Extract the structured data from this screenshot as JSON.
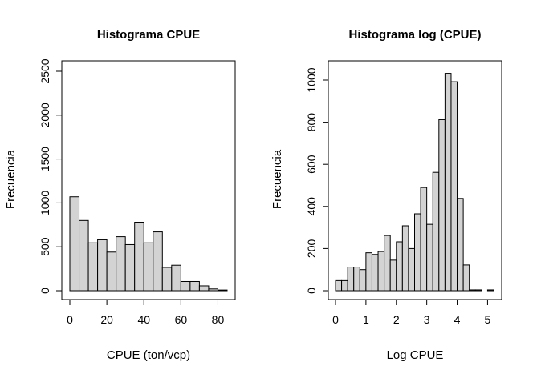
{
  "chart_data": [
    {
      "type": "bar",
      "title": "Histograma CPUE",
      "xlabel": "CPUE (ton/vcp)",
      "ylabel": "Frecuencia",
      "bin_width": 5,
      "xlim": [
        0,
        85
      ],
      "ylim": [
        0,
        2500
      ],
      "xticks": [
        0,
        20,
        40,
        60,
        80
      ],
      "yticks": [
        0,
        500,
        1000,
        1500,
        2000,
        2500
      ],
      "bar_color": "#d3d3d3",
      "bins": [
        {
          "x0": 0,
          "x1": 5,
          "count": 1070
        },
        {
          "x0": 5,
          "x1": 10,
          "count": 800
        },
        {
          "x0": 10,
          "x1": 15,
          "count": 545
        },
        {
          "x0": 15,
          "x1": 20,
          "count": 580
        },
        {
          "x0": 20,
          "x1": 25,
          "count": 440
        },
        {
          "x0": 25,
          "x1": 30,
          "count": 615
        },
        {
          "x0": 30,
          "x1": 35,
          "count": 525
        },
        {
          "x0": 35,
          "x1": 40,
          "count": 780
        },
        {
          "x0": 40,
          "x1": 45,
          "count": 545
        },
        {
          "x0": 45,
          "x1": 50,
          "count": 670
        },
        {
          "x0": 50,
          "x1": 55,
          "count": 265
        },
        {
          "x0": 55,
          "x1": 60,
          "count": 290
        },
        {
          "x0": 60,
          "x1": 65,
          "count": 105
        },
        {
          "x0": 65,
          "x1": 70,
          "count": 105
        },
        {
          "x0": 70,
          "x1": 75,
          "count": 55
        },
        {
          "x0": 75,
          "x1": 80,
          "count": 20
        },
        {
          "x0": 80,
          "x1": 85,
          "count": 8
        }
      ]
    },
    {
      "type": "bar",
      "title": "Histograma log (CPUE)",
      "xlabel": "Log CPUE",
      "ylabel": "Frecuencia",
      "bin_width": 0.2,
      "xlim": [
        0,
        5.2
      ],
      "ylim": [
        0,
        1000
      ],
      "xticks": [
        0,
        1,
        2,
        3,
        4,
        5
      ],
      "yticks": [
        0,
        200,
        400,
        600,
        800,
        1000
      ],
      "bar_color": "#d3d3d3",
      "bins": [
        {
          "x0": 0.0,
          "x1": 0.2,
          "count": 48
        },
        {
          "x0": 0.2,
          "x1": 0.4,
          "count": 48
        },
        {
          "x0": 0.4,
          "x1": 0.6,
          "count": 112
        },
        {
          "x0": 0.6,
          "x1": 0.8,
          "count": 112
        },
        {
          "x0": 0.8,
          "x1": 1.0,
          "count": 100
        },
        {
          "x0": 1.0,
          "x1": 1.2,
          "count": 180
        },
        {
          "x0": 1.2,
          "x1": 1.4,
          "count": 172
        },
        {
          "x0": 1.4,
          "x1": 1.6,
          "count": 186
        },
        {
          "x0": 1.6,
          "x1": 1.8,
          "count": 262
        },
        {
          "x0": 1.8,
          "x1": 2.0,
          "count": 145
        },
        {
          "x0": 2.0,
          "x1": 2.2,
          "count": 232
        },
        {
          "x0": 2.2,
          "x1": 2.4,
          "count": 308
        },
        {
          "x0": 2.4,
          "x1": 2.6,
          "count": 200
        },
        {
          "x0": 2.6,
          "x1": 2.8,
          "count": 365
        },
        {
          "x0": 2.8,
          "x1": 3.0,
          "count": 490
        },
        {
          "x0": 3.0,
          "x1": 3.2,
          "count": 315
        },
        {
          "x0": 3.2,
          "x1": 3.4,
          "count": 562
        },
        {
          "x0": 3.4,
          "x1": 3.6,
          "count": 812
        },
        {
          "x0": 3.6,
          "x1": 3.8,
          "count": 1032
        },
        {
          "x0": 3.8,
          "x1": 4.0,
          "count": 992
        },
        {
          "x0": 4.0,
          "x1": 4.2,
          "count": 438
        },
        {
          "x0": 4.2,
          "x1": 4.4,
          "count": 122
        },
        {
          "x0": 4.4,
          "x1": 4.6,
          "count": 4
        },
        {
          "x0": 4.6,
          "x1": 4.8,
          "count": 4
        },
        {
          "x0": 4.8,
          "x1": 5.0,
          "count": 0
        },
        {
          "x0": 5.0,
          "x1": 5.2,
          "count": 4
        }
      ]
    }
  ]
}
